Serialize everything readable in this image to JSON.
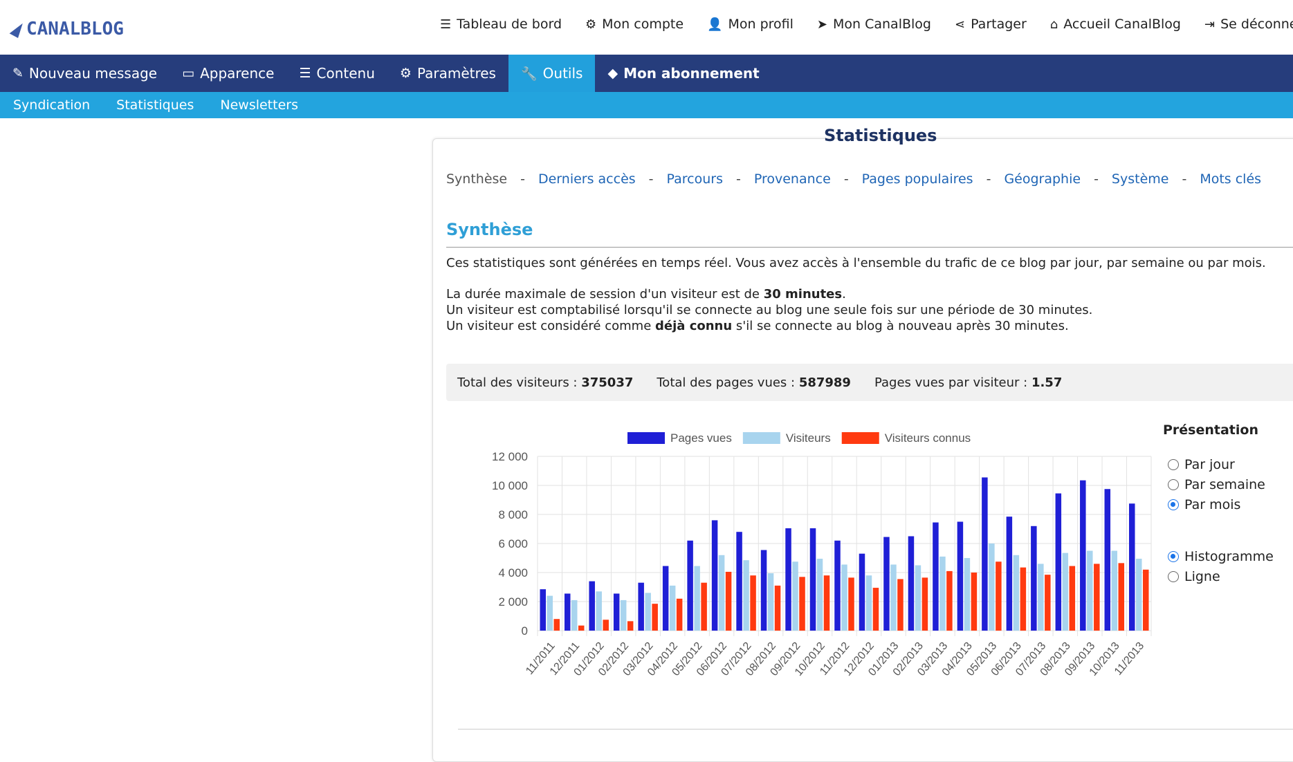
{
  "header": {
    "logo_text": "CANALBLOG",
    "nav": [
      {
        "label": "Tableau de bord",
        "icon": "list-icon"
      },
      {
        "label": "Mon compte",
        "icon": "gear-icon"
      },
      {
        "label": "Mon profil",
        "icon": "user-icon"
      },
      {
        "label": "Mon CanalBlog",
        "icon": "send-icon"
      },
      {
        "label": "Partager",
        "icon": "share-icon"
      },
      {
        "label": "Accueil CanalBlog",
        "icon": "home-icon"
      },
      {
        "label": "Se déconnecter",
        "icon": "logout-icon"
      }
    ]
  },
  "mainnav": [
    {
      "label": "Nouveau message",
      "icon": "pencil-icon"
    },
    {
      "label": "Apparence",
      "icon": "monitor-icon"
    },
    {
      "label": "Contenu",
      "icon": "list-icon"
    },
    {
      "label": "Paramètres",
      "icon": "gear-icon"
    },
    {
      "label": "Outils",
      "icon": "wrench-icon",
      "active": true
    },
    {
      "label": "Mon abonnement",
      "icon": "tag-icon",
      "bold": true
    }
  ],
  "subnav": [
    "Syndication",
    "Statistiques",
    "Newsletters"
  ],
  "page": {
    "title": "Statistiques",
    "stats_nav": {
      "current": "Synthèse",
      "links": [
        "Derniers accès",
        "Parcours",
        "Provenance",
        "Pages populaires",
        "Géographie",
        "Système",
        "Mots clés"
      ],
      "separator": "-"
    },
    "section_title": "Synthèse",
    "intro": "Ces statistiques sont générées en temps réel. Vous avez accès à l'ensemble du trafic de ce blog par jour, par semaine ou par mois.",
    "session_pre": "La durée maximale de session d'un visiteur est de ",
    "session_bold": "30 minutes",
    "session_post": ".",
    "counted": "Un visiteur est comptabilisé lorsqu'il se connecte au blog une seule fois sur une période de 30 minutes.",
    "known_pre": "Un visiteur est considéré comme ",
    "known_bold": "déjà connu",
    "known_post": " s'il se connecte au blog à nouveau après 30 minutes.",
    "totals": [
      {
        "label": "Total des visiteurs : ",
        "value": "375037"
      },
      {
        "label": "Total des pages vues : ",
        "value": "587989"
      },
      {
        "label": "Pages vues par visiteur : ",
        "value": "1.57"
      }
    ],
    "presentation": {
      "title": "Présentation",
      "period_options": [
        {
          "label": "Par jour",
          "checked": false
        },
        {
          "label": "Par semaine",
          "checked": false
        },
        {
          "label": "Par mois",
          "checked": true
        }
      ],
      "type_options": [
        {
          "label": "Histogramme",
          "checked": true
        },
        {
          "label": "Ligne",
          "checked": false
        }
      ]
    }
  },
  "chart_data": {
    "type": "bar",
    "categories": [
      "11/2011",
      "12/2011",
      "01/2012",
      "02/2012",
      "03/2012",
      "04/2012",
      "05/2012",
      "06/2012",
      "07/2012",
      "08/2012",
      "09/2012",
      "10/2012",
      "11/2012",
      "12/2012",
      "01/2013",
      "02/2013",
      "03/2013",
      "04/2013",
      "05/2013",
      "06/2013",
      "07/2013",
      "08/2013",
      "09/2013",
      "10/2013",
      "11/2013"
    ],
    "series": [
      {
        "name": "Pages vues",
        "color": "#1f1fd6",
        "values": [
          2850,
          2550,
          3400,
          2550,
          3300,
          4450,
          6200,
          7600,
          6800,
          5550,
          7050,
          7050,
          6200,
          5300,
          6450,
          6500,
          7450,
          7500,
          10550,
          7850,
          7200,
          9450,
          10350,
          9750,
          8750
        ]
      },
      {
        "name": "Visiteurs",
        "color": "#a8d4ee",
        "values": [
          2400,
          2100,
          2700,
          2100,
          2600,
          3100,
          4450,
          5200,
          4850,
          3950,
          4750,
          4950,
          4550,
          3800,
          4550,
          4500,
          5100,
          5000,
          6000,
          5200,
          4600,
          5350,
          5500,
          5500,
          4950
        ]
      },
      {
        "name": "Visiteurs connus",
        "color": "#ff3a10",
        "values": [
          800,
          350,
          750,
          650,
          1850,
          2200,
          3300,
          4050,
          3800,
          3100,
          3700,
          3800,
          3650,
          2950,
          3550,
          3650,
          4100,
          4000,
          4750,
          4350,
          3850,
          4450,
          4600,
          4650,
          4200
        ]
      }
    ],
    "yticks": [
      "0",
      "2 000",
      "4 000",
      "6 000",
      "8 000",
      "10 000",
      "12 000"
    ],
    "ylim": [
      0,
      12000
    ],
    "grid": true,
    "legend": "top"
  }
}
